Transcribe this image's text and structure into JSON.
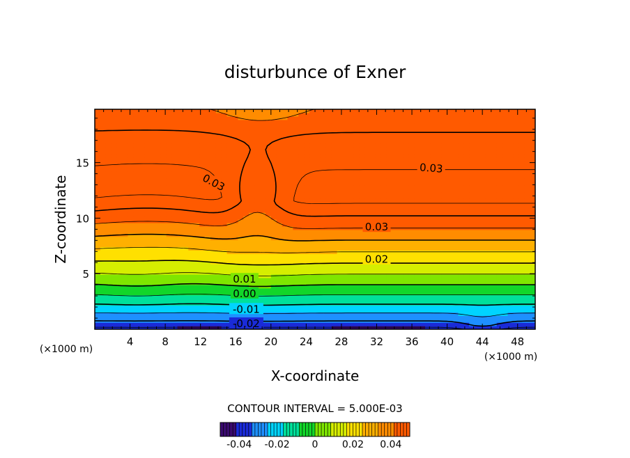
{
  "chart_data": {
    "type": "heatmap",
    "title": "disturbunce of Exner",
    "xlabel": "X-coordinate",
    "ylabel": "Z-coordinate",
    "x_unit": "(×1000 m)",
    "x_unit_left": "(×1000 m)",
    "xlim": [
      0,
      50
    ],
    "ylim": [
      0,
      19.8
    ],
    "x_ticks": [
      4,
      8,
      12,
      16,
      20,
      24,
      28,
      32,
      36,
      40,
      44,
      48
    ],
    "y_ticks": [
      5,
      10,
      15
    ],
    "x_tick_labels": [
      "4",
      "8",
      "12",
      "16",
      "20",
      "24",
      "28",
      "32",
      "36",
      "40",
      "44",
      "48"
    ],
    "y_tick_labels": [
      "5",
      "10",
      "15"
    ],
    "contour_interval_text": "CONTOUR INTERVAL = 5.000E-03",
    "contour_labels": [
      {
        "text": "0.03",
        "x": 13.5,
        "z": 13.2,
        "angle": 28
      },
      {
        "text": "0.03",
        "x": 38.2,
        "z": 14.5,
        "angle": 4
      },
      {
        "text": "0.03",
        "x": 32.0,
        "z": 9.2,
        "angle": 0
      },
      {
        "text": "0.02",
        "x": 32.0,
        "z": 6.3,
        "angle": 0
      },
      {
        "text": "0.01",
        "x": 17.0,
        "z": 4.5,
        "angle": 0
      },
      {
        "text": "0.00",
        "x": 17.0,
        "z": 3.2,
        "angle": 0
      },
      {
        "text": "-0.01",
        "x": 17.2,
        "z": 1.8,
        "angle": 0
      },
      {
        "text": "-0.02",
        "x": 17.2,
        "z": 0.5,
        "angle": 0
      }
    ],
    "colorbar": {
      "range": [
        -0.05,
        0.05
      ],
      "tick_values": [
        -0.04,
        -0.02,
        0,
        0.02,
        0.04
      ],
      "tick_labels": [
        "-0.04",
        "-0.02",
        "0",
        "0.02",
        "0.04"
      ]
    },
    "colormap": [
      "#3a0a6e",
      "#1a2bd8",
      "#1e90ff",
      "#00d4ff",
      "#00e09a",
      "#12d62a",
      "#7fe600",
      "#d6ee00",
      "#ffe000",
      "#ffb000",
      "#ff8c00",
      "#ff5a00"
    ]
  }
}
